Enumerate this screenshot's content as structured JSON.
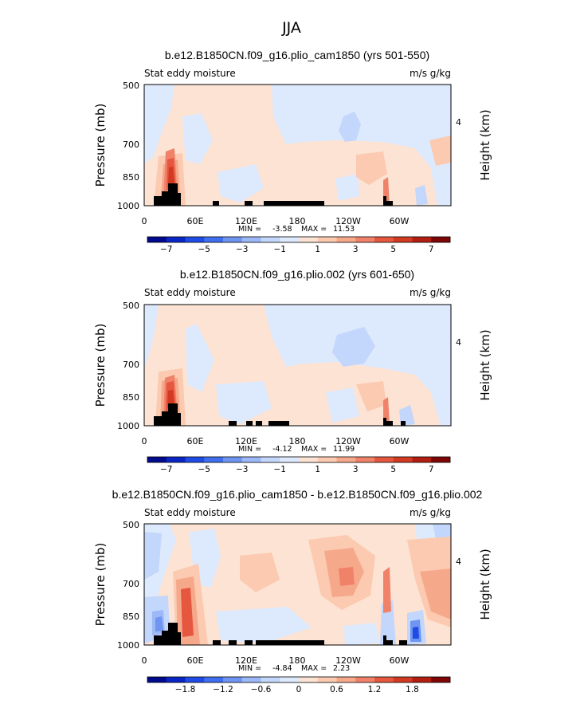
{
  "figure": {
    "season": "JJA"
  },
  "chart_data": [
    {
      "type": "heatmap",
      "title": "b.e12.B1850CN.f09_g16.plio_cam1850 (yrs 501-550)",
      "left_label": "Stat eddy moisture",
      "right_label": "m/s g/kg",
      "ylabel": "Pressure (mb)",
      "ylabel_right": "Height (km)",
      "y_ticks": [
        "500",
        "700",
        "850",
        "1000"
      ],
      "y_right_ticks": [
        "4"
      ],
      "x_ticks": [
        "0",
        "60E",
        "120E",
        "180",
        "120W",
        "60W"
      ],
      "min_label": "MIN =",
      "min_value": "-3.58",
      "max_label": "MAX =",
      "max_value": "11.53",
      "colorbar_levels": [
        -8,
        -7,
        -6,
        -5,
        -4,
        -3,
        -2,
        -1,
        0,
        1,
        2,
        3,
        4,
        5,
        6,
        7,
        8
      ],
      "colorbar_labels": [
        "-7",
        "-5",
        "-3",
        "-1",
        "1",
        "3",
        "5",
        "7"
      ]
    },
    {
      "type": "heatmap",
      "title": "b.e12.B1850CN.f09_g16.plio.002 (yrs 601-650)",
      "left_label": "Stat eddy moisture",
      "right_label": "m/s g/kg",
      "ylabel": "Pressure (mb)",
      "ylabel_right": "Height (km)",
      "y_ticks": [
        "500",
        "700",
        "850",
        "1000"
      ],
      "y_right_ticks": [
        "4"
      ],
      "x_ticks": [
        "0",
        "60E",
        "120E",
        "180",
        "120W",
        "60W"
      ],
      "min_label": "MIN =",
      "min_value": "-4.12",
      "max_label": "MAX =",
      "max_value": "11.99",
      "colorbar_levels": [
        -8,
        -7,
        -6,
        -5,
        -4,
        -3,
        -2,
        -1,
        0,
        1,
        2,
        3,
        4,
        5,
        6,
        7,
        8
      ],
      "colorbar_labels": [
        "-7",
        "-5",
        "-3",
        "-1",
        "1",
        "3",
        "5",
        "7"
      ]
    },
    {
      "type": "heatmap",
      "title": "b.e12.B1850CN.f09_g16.plio_cam1850 - b.e12.B1850CN.f09_g16.plio.002",
      "left_label": "Stat eddy moisture",
      "right_label": "m/s g/kg",
      "ylabel": "Pressure (mb)",
      "ylabel_right": "Height (km)",
      "y_ticks": [
        "500",
        "700",
        "850",
        "1000"
      ],
      "y_right_ticks": [
        "4"
      ],
      "x_ticks": [
        "0",
        "60E",
        "120E",
        "180",
        "120W",
        "60W"
      ],
      "min_label": "MIN =",
      "min_value": "-4.84",
      "max_label": "MAX =",
      "max_value": "2.23",
      "colorbar_levels": [
        -2.4,
        -2.1,
        -1.8,
        -1.5,
        -1.2,
        -0.9,
        -0.6,
        -0.3,
        0,
        0.3,
        0.6,
        0.9,
        1.2,
        1.5,
        1.8,
        2.1,
        2.4
      ],
      "colorbar_labels": [
        "-1.8",
        "-1.2",
        "-0.6",
        "0",
        "0.6",
        "1.2",
        "1.8"
      ]
    }
  ],
  "colors": {
    "palette": [
      "#000a8c",
      "#0a26c4",
      "#1f4be6",
      "#3f6fef",
      "#6f95f3",
      "#9cb8f6",
      "#c3d6fb",
      "#dde9fd",
      "#fde3d3",
      "#fbcab0",
      "#f6a98a",
      "#f0826a",
      "#e5573f",
      "#d23a22",
      "#b21e12",
      "#7e0606"
    ],
    "topography": "#000000"
  }
}
